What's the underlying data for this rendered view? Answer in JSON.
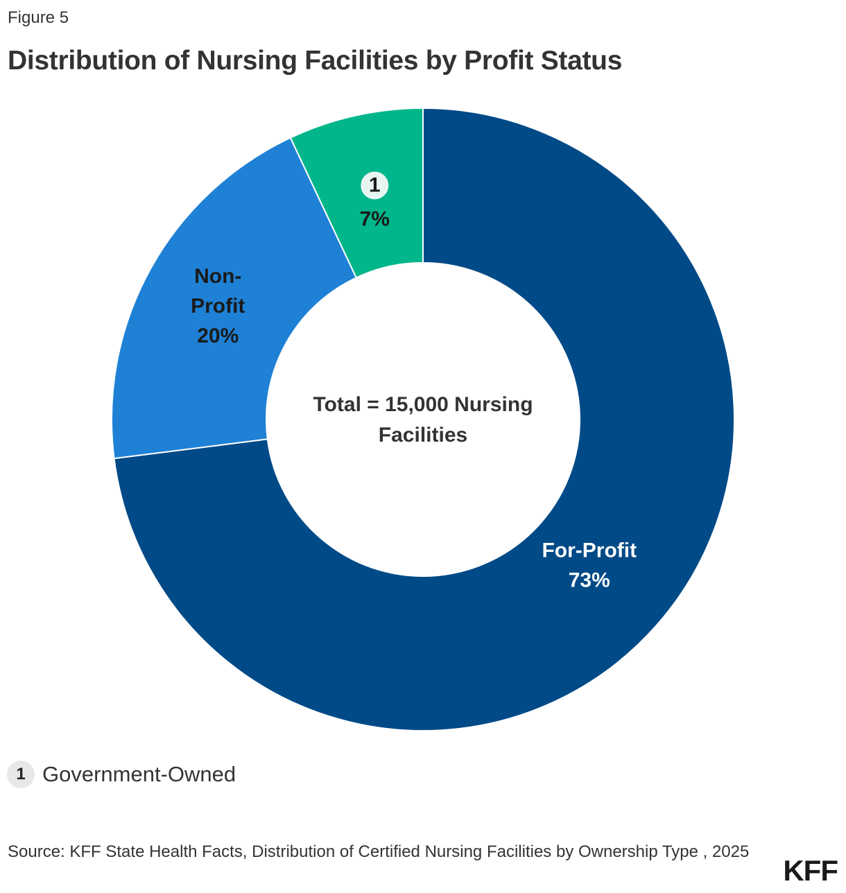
{
  "header": {
    "eyebrow": "Figure 5",
    "title": "Distribution of Nursing Facilities by Profit Status"
  },
  "chart_data": {
    "type": "pie",
    "variant": "donut",
    "title": "Distribution of Nursing Facilities by Profit Status",
    "center_label": [
      "Total = 15,000 Nursing",
      "Facilities"
    ],
    "slices": [
      {
        "name": "For-Profit",
        "value": 73,
        "label_lines": [
          "For-Profit",
          "73%"
        ],
        "color": "#004a87",
        "text_color": "#ffffff"
      },
      {
        "name": "Non-Profit",
        "value": 20,
        "label_lines": [
          "Non-",
          "Profit",
          "20%"
        ],
        "color": "#1e81d6",
        "text_color": "#1a1a1a"
      },
      {
        "name": "Government-Owned",
        "value": 7,
        "label_lines": [
          "7%"
        ],
        "marker": "1",
        "color": "#00b68a",
        "text_color": "#1a1a1a"
      }
    ]
  },
  "legend": {
    "marker": "1",
    "label": "Government-Owned"
  },
  "footer": {
    "source": "Source: KFF State Health Facts, Distribution of Certified Nursing Facilities by Ownership Type , 2025",
    "logo": "KFF"
  }
}
